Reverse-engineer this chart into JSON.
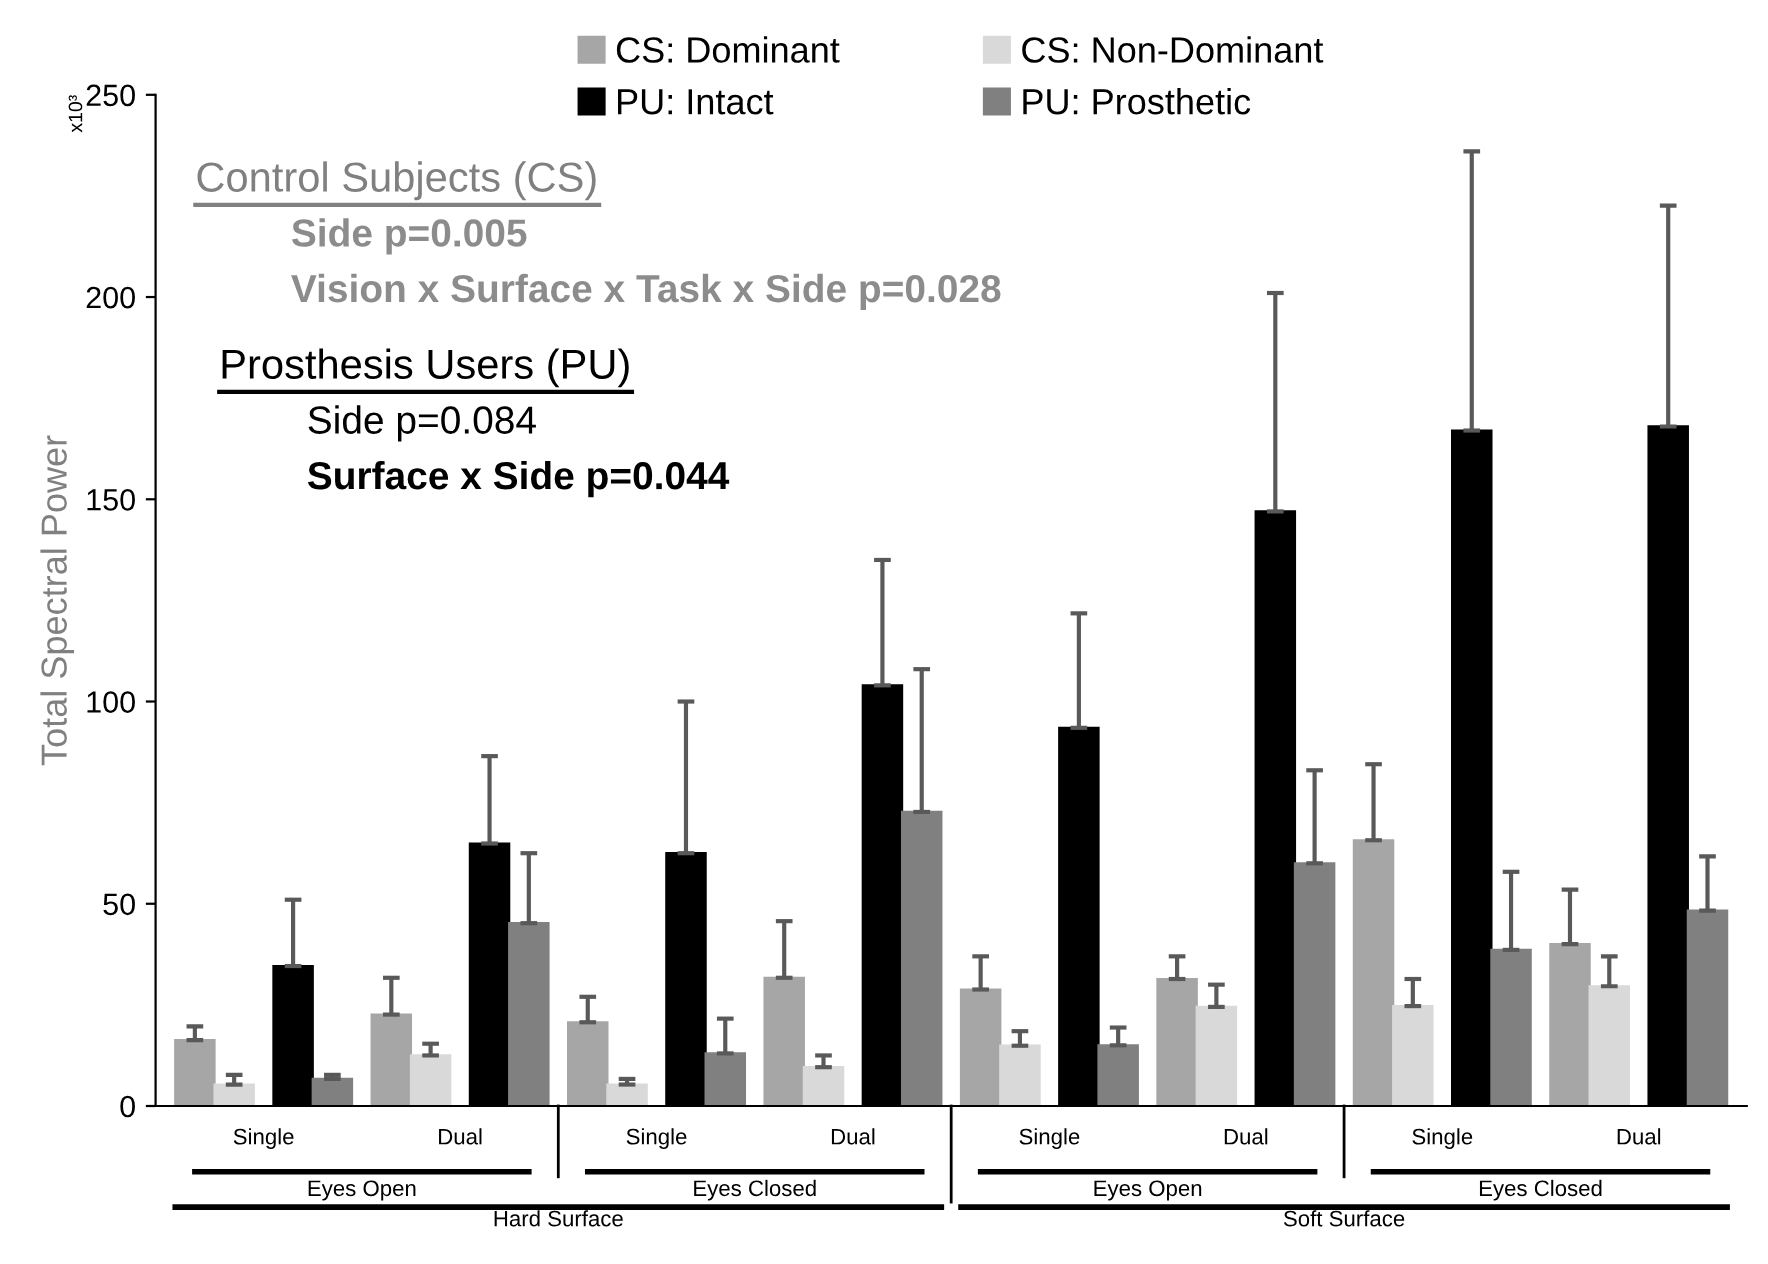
{
  "chart_data": {
    "type": "bar",
    "ylabel": "Total Spectral Power",
    "categories": [
      "Single",
      "Dual",
      "Single",
      "Dual",
      "Single",
      "Dual",
      "Single",
      "Dual"
    ],
    "series": [
      {
        "name": "CS: Dominant",
        "color": "#a6a6a6",
        "values": [
          16.3,
          22.6,
          20.7,
          31.7,
          28.8,
          31.4,
          65.7,
          40
        ],
        "errors": [
          [
            16.3,
            19.7
          ],
          [
            22.6,
            31.7
          ],
          [
            20.7,
            27
          ],
          [
            31.7,
            45.7
          ],
          [
            28.8,
            37
          ],
          [
            31.4,
            37
          ],
          [
            65.7,
            84.5
          ],
          [
            40,
            53.5
          ]
        ]
      },
      {
        "name": "CS: Non-Dominant",
        "color": "#d9d9d9",
        "values": [
          5.3,
          12.5,
          5.3,
          9.6,
          14.9,
          24.5,
          24.7,
          29.6
        ],
        "errors": [
          [
            5.3,
            7.7
          ],
          [
            12.5,
            15.4
          ],
          [
            5.3,
            6.7
          ],
          [
            9.6,
            12.5
          ],
          [
            14.9,
            18.5
          ],
          [
            24.5,
            30
          ],
          [
            24.7,
            31.4
          ],
          [
            29.6,
            37
          ]
        ]
      },
      {
        "name": "PU: Intact",
        "color": "#000000",
        "values": [
          34.6,
          64.9,
          62.5,
          104,
          93.5,
          147,
          167,
          168
        ],
        "errors": [
          [
            34.6,
            51
          ],
          [
            64.9,
            86.5
          ],
          [
            62.5,
            100
          ],
          [
            104,
            135
          ],
          [
            93.5,
            121.8
          ],
          [
            147,
            201
          ],
          [
            167,
            236
          ],
          [
            168,
            222.6
          ]
        ]
      },
      {
        "name": "PU: Prosthetic",
        "color": "#808080",
        "values": [
          6.7,
          45.2,
          13,
          72.7,
          15,
          60,
          38.6,
          48.3
        ],
        "errors": [
          [
            6.7,
            7.7
          ],
          [
            45.2,
            62.5
          ],
          [
            13,
            21.6
          ],
          [
            72.7,
            108
          ],
          [
            15,
            19.4
          ],
          [
            60,
            83
          ],
          [
            38.6,
            57.9
          ],
          [
            48.3,
            61.7
          ]
        ]
      }
    ],
    "ylim": [
      0,
      250
    ],
    "yticks": [
      0,
      50,
      100,
      150,
      200,
      250
    ],
    "legend": "top",
    "annotations": [
      "x10³",
      "Control Subjects (CS)",
      "Side p=0.005",
      "Vision x Surface x Task x Side p=0.028",
      "Prosthesis Users (PU)",
      "Side p=0.084",
      "Surface x Side p=0.044",
      "Eyes Open",
      "Eyes Closed",
      "Eyes Open",
      "Eyes Closed",
      "Hard Surface",
      "Soft Surface"
    ]
  }
}
